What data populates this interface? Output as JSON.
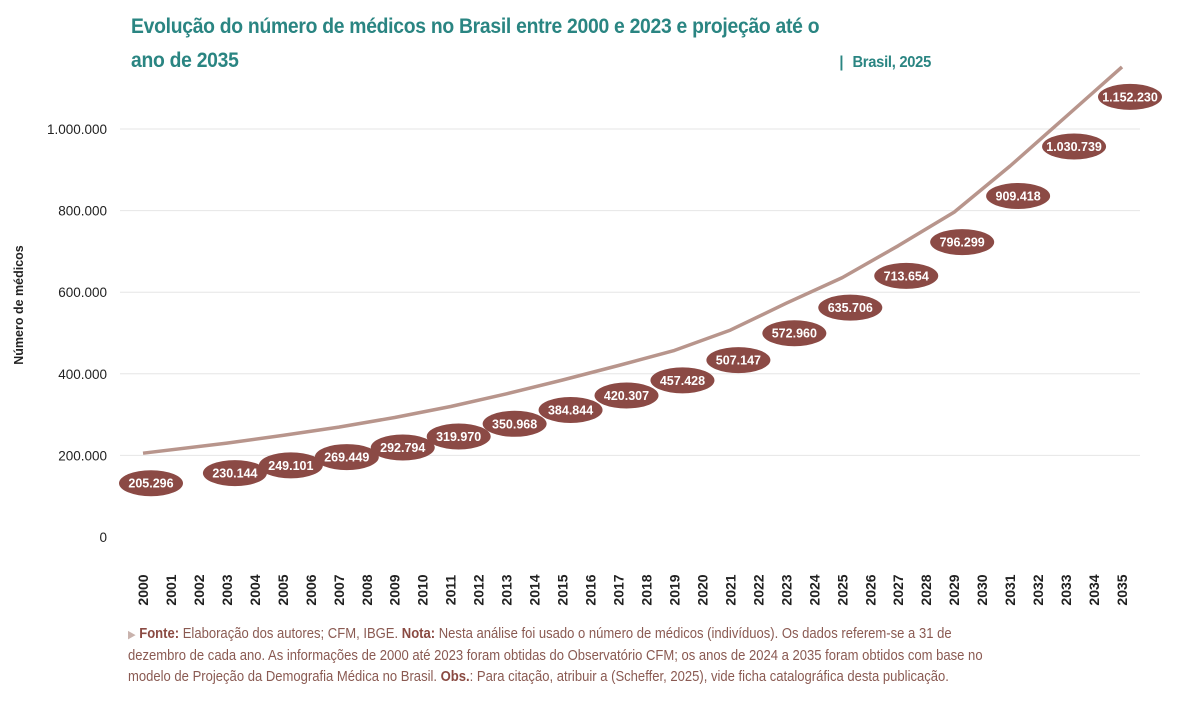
{
  "title": {
    "main": "Evolução do número de médicos no Brasil entre 2000 e 2023 e projeção até o ano de 2035",
    "separator": "|",
    "subtitle": "Brasil, 2025"
  },
  "colors": {
    "title": "#2a8582",
    "line": "#b8958c",
    "label_bg": "#8b4a45",
    "footnote": "#8a5a52",
    "grid": "#e6e6e6"
  },
  "chart_data": {
    "type": "line",
    "title": "Evolução do número de médicos no Brasil entre 2000 e 2023 e projeção até o ano de 2035",
    "ylabel": "Número de médicos",
    "xlabel": "",
    "ylim": [
      0,
      1150000
    ],
    "grid": true,
    "y_ticks": [
      0,
      200000,
      400000,
      600000,
      800000,
      1000000
    ],
    "y_tick_labels": [
      "0",
      "200.000",
      "400.000",
      "600.000",
      "800.000",
      "1.000.000"
    ],
    "x_tick_labels": [
      "2000",
      "2001",
      "2002",
      "2003",
      "2004",
      "2005",
      "2006",
      "2007",
      "2008",
      "2009",
      "2010",
      "2011",
      "2012",
      "2013",
      "2014",
      "2015",
      "2016",
      "2017",
      "2018",
      "2019",
      "2020",
      "2021",
      "2022",
      "2023",
      "2024",
      "2025",
      "2026",
      "2027",
      "2028",
      "2029",
      "2030",
      "2031",
      "2032",
      "2033",
      "2034",
      "2035"
    ],
    "points": [
      {
        "year": 2000,
        "value": 205296,
        "label": "205.296"
      },
      {
        "year": 2003,
        "value": 230144,
        "label": "230.144"
      },
      {
        "year": 2005,
        "value": 249101,
        "label": "249.101"
      },
      {
        "year": 2007,
        "value": 269449,
        "label": "269.449"
      },
      {
        "year": 2009,
        "value": 292794,
        "label": "292.794"
      },
      {
        "year": 2011,
        "value": 319970,
        "label": "319.970"
      },
      {
        "year": 2013,
        "value": 350968,
        "label": "350.968"
      },
      {
        "year": 2015,
        "value": 384844,
        "label": "384.844"
      },
      {
        "year": 2017,
        "value": 420307,
        "label": "420.307"
      },
      {
        "year": 2019,
        "value": 457428,
        "label": "457.428"
      },
      {
        "year": 2021,
        "value": 507147,
        "label": "507.147"
      },
      {
        "year": 2023,
        "value": 572960,
        "label": "572.960"
      },
      {
        "year": 2025,
        "value": 635706,
        "label": "635.706"
      },
      {
        "year": 2027,
        "value": 713654,
        "label": "713.654"
      },
      {
        "year": 2029,
        "value": 796299,
        "label": "796.299"
      },
      {
        "year": 2031,
        "value": 909418,
        "label": "909.418"
      },
      {
        "year": 2033,
        "value": 1030739,
        "label": "1.030.739"
      },
      {
        "year": 2035,
        "value": 1152230,
        "label": "1.152.230"
      }
    ]
  },
  "footnote": {
    "fonte_label": "Fonte:",
    "fonte_text": " Elaboração dos autores; CFM, IBGE. ",
    "nota_label": "Nota:",
    "nota_text": " Nesta análise foi usado o número de médicos (indivíduos). Os dados referem-se a 31 de dezembro de cada ano. As informações de 2000 até 2023 foram obtidas do Observatório CFM; os anos de 2024 a 2035 foram obtidos com base no modelo de Projeção da Demografia Médica no Brasil. ",
    "obs_label": "Obs.",
    "obs_text": ": Para citação, atribuir a (Scheffer, 2025), vide ficha catalográfica desta publicação."
  }
}
